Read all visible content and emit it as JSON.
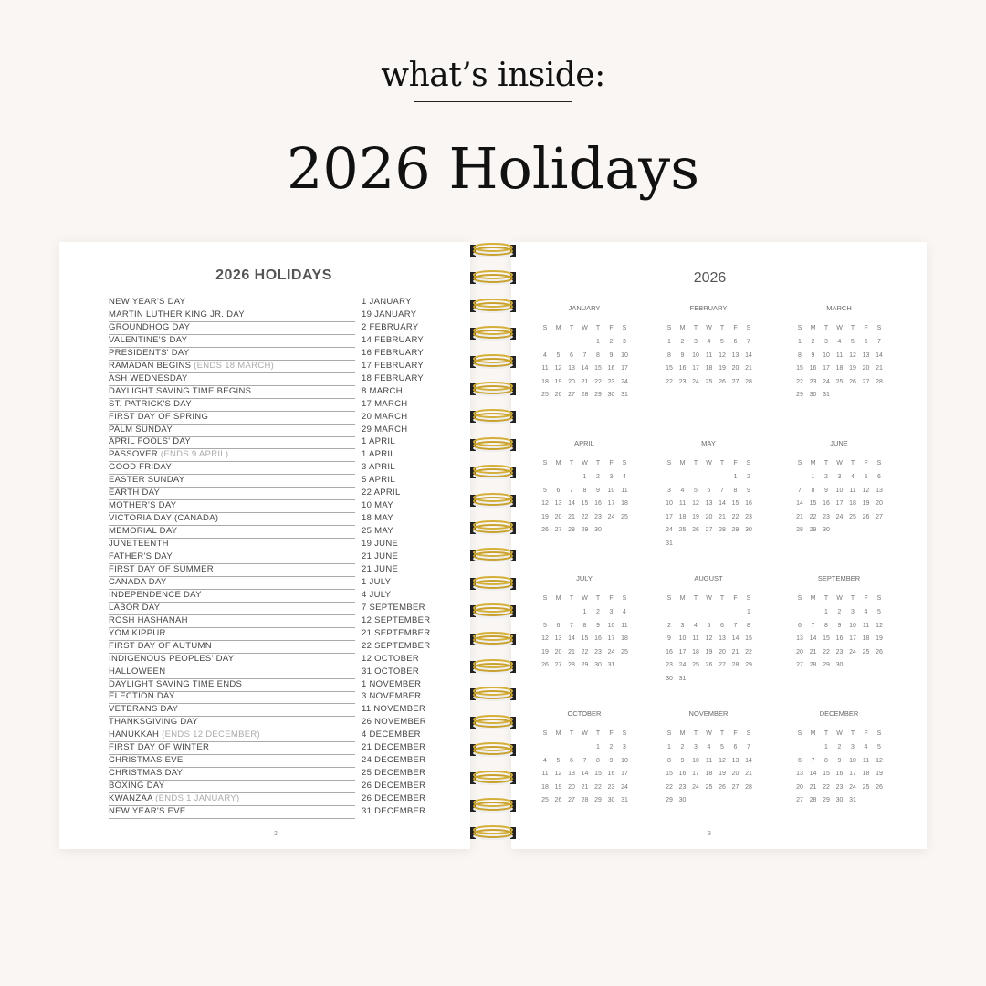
{
  "header": {
    "subtitle": "what’s inside:",
    "title": "2026 Holidays"
  },
  "left_page": {
    "title": "2026 HOLIDAYS",
    "page_number": "2",
    "holidays": [
      {
        "name": "NEW YEAR'S DAY",
        "date": "1 JANUARY"
      },
      {
        "name": "MARTIN LUTHER KING JR. DAY",
        "date": "19 JANUARY"
      },
      {
        "name": "GROUNDHOG DAY",
        "date": "2 FEBRUARY"
      },
      {
        "name": "VALENTINE'S DAY",
        "date": "14 FEBRUARY"
      },
      {
        "name": "PRESIDENTS' DAY",
        "date": "16 FEBRUARY"
      },
      {
        "name": "RAMADAN BEGINS",
        "note": "(ENDS 18 MARCH)",
        "date": "17 FEBRUARY"
      },
      {
        "name": "ASH WEDNESDAY",
        "date": "18 FEBRUARY"
      },
      {
        "name": "DAYLIGHT SAVING TIME BEGINS",
        "date": "8 MARCH"
      },
      {
        "name": "ST. PATRICK'S DAY",
        "date": "17 MARCH"
      },
      {
        "name": "FIRST DAY OF SPRING",
        "date": "20 MARCH"
      },
      {
        "name": "PALM SUNDAY",
        "date": "29 MARCH"
      },
      {
        "name": "APRIL FOOLS' DAY",
        "date": "1 APRIL"
      },
      {
        "name": "PASSOVER",
        "note": "(ENDS 9 APRIL)",
        "date": "1 APRIL"
      },
      {
        "name": "GOOD FRIDAY",
        "date": "3 APRIL"
      },
      {
        "name": "EASTER SUNDAY",
        "date": "5 APRIL"
      },
      {
        "name": "EARTH DAY",
        "date": "22 APRIL"
      },
      {
        "name": "MOTHER'S DAY",
        "date": "10 MAY"
      },
      {
        "name": "VICTORIA DAY (CANADA)",
        "date": "18 MAY"
      },
      {
        "name": "MEMORIAL DAY",
        "date": "25 MAY"
      },
      {
        "name": "JUNETEENTH",
        "date": "19 JUNE"
      },
      {
        "name": "FATHER'S DAY",
        "date": "21 JUNE"
      },
      {
        "name": "FIRST DAY OF SUMMER",
        "date": "21 JUNE"
      },
      {
        "name": "CANADA DAY",
        "date": "1 JULY"
      },
      {
        "name": "INDEPENDENCE DAY",
        "date": "4 JULY"
      },
      {
        "name": "LABOR DAY",
        "date": "7 SEPTEMBER"
      },
      {
        "name": "ROSH HASHANAH",
        "date": "12 SEPTEMBER"
      },
      {
        "name": "YOM KIPPUR",
        "date": "21 SEPTEMBER"
      },
      {
        "name": "FIRST DAY OF AUTUMN",
        "date": "22 SEPTEMBER"
      },
      {
        "name": "INDIGENOUS PEOPLES' DAY",
        "date": "12 OCTOBER"
      },
      {
        "name": "HALLOWEEN",
        "date": "31 OCTOBER"
      },
      {
        "name": "DAYLIGHT SAVING TIME ENDS",
        "date": "1 NOVEMBER"
      },
      {
        "name": "ELECTION DAY",
        "date": "3 NOVEMBER"
      },
      {
        "name": "VETERANS DAY",
        "date": "11 NOVEMBER"
      },
      {
        "name": "THANKSGIVING DAY",
        "date": "26 NOVEMBER"
      },
      {
        "name": "HANUKKAH",
        "note": "(ENDS 12 DECEMBER)",
        "date": "4 DECEMBER"
      },
      {
        "name": "FIRST DAY OF WINTER",
        "date": "21 DECEMBER"
      },
      {
        "name": "CHRISTMAS EVE",
        "date": "24 DECEMBER"
      },
      {
        "name": "CHRISTMAS DAY",
        "date": "25 DECEMBER"
      },
      {
        "name": "BOXING DAY",
        "date": "26 DECEMBER"
      },
      {
        "name": "KWANZAA",
        "note": "(ENDS 1 JANUARY)",
        "date": "26 DECEMBER"
      },
      {
        "name": "NEW YEAR'S EVE",
        "date": "31 DECEMBER"
      }
    ]
  },
  "right_page": {
    "year": "2026",
    "page_number": "3",
    "weekdays": [
      "S",
      "M",
      "T",
      "W",
      "T",
      "F",
      "S"
    ],
    "months": [
      {
        "name": "JANUARY",
        "first_weekday": 4,
        "days": 31
      },
      {
        "name": "FEBRUARY",
        "first_weekday": 0,
        "days": 28
      },
      {
        "name": "MARCH",
        "first_weekday": 0,
        "days": 31
      },
      {
        "name": "APRIL",
        "first_weekday": 3,
        "days": 30
      },
      {
        "name": "MAY",
        "first_weekday": 5,
        "days": 31
      },
      {
        "name": "JUNE",
        "first_weekday": 1,
        "days": 30
      },
      {
        "name": "JULY",
        "first_weekday": 3,
        "days": 31
      },
      {
        "name": "AUGUST",
        "first_weekday": 6,
        "days": 31
      },
      {
        "name": "SEPTEMBER",
        "first_weekday": 2,
        "days": 30
      },
      {
        "name": "OCTOBER",
        "first_weekday": 4,
        "days": 31
      },
      {
        "name": "NOVEMBER",
        "first_weekday": 0,
        "days": 30
      },
      {
        "name": "DECEMBER",
        "first_weekday": 2,
        "days": 31
      }
    ]
  },
  "colors": {
    "background": "#faf6f3",
    "ring_gold": "#d4b03a"
  }
}
